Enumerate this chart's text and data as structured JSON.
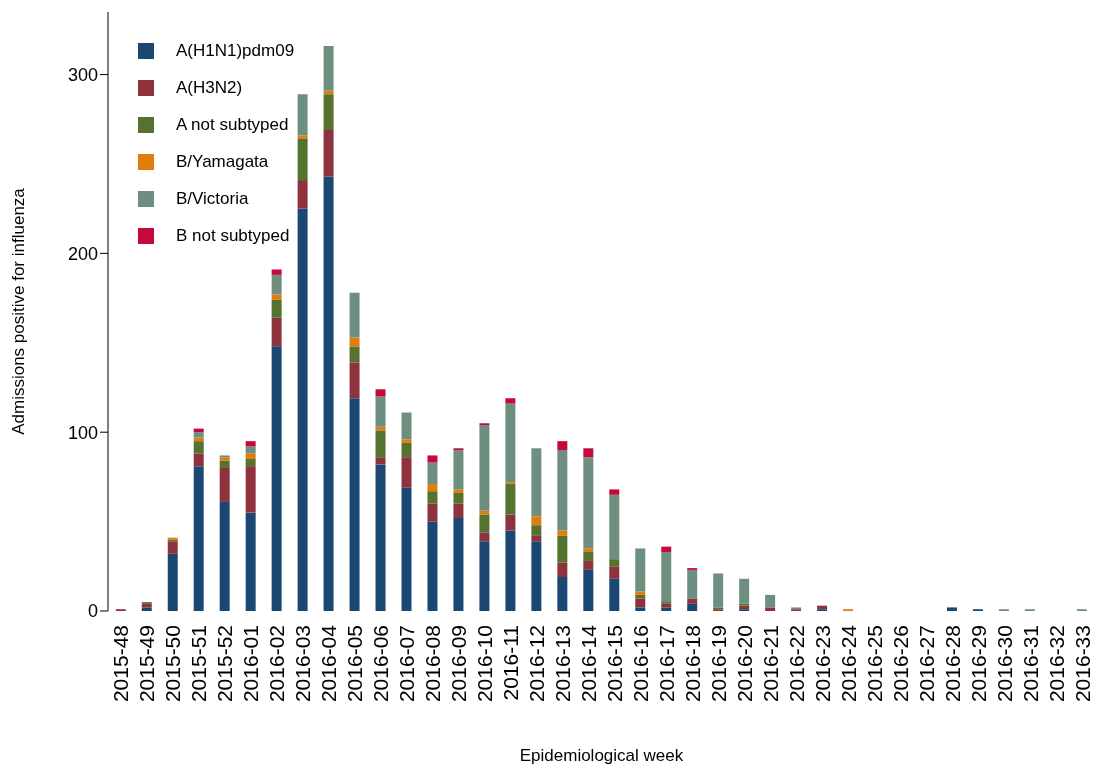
{
  "chart_data": {
    "type": "bar",
    "stacked": true,
    "xlabel": "Epidemiological week",
    "ylabel": "Admissions positive for influenza",
    "ylim": [
      0,
      335
    ],
    "yticks": [
      0,
      100,
      200,
      300
    ],
    "grid": false,
    "legend": "top left",
    "categories": [
      "2015-48",
      "2015-49",
      "2015-50",
      "2015-51",
      "2015-52",
      "2016-01",
      "2016-02",
      "2016-03",
      "2016-04",
      "2016-05",
      "2016-06",
      "2016-07",
      "2016-08",
      "2016-09",
      "2016-10",
      "2016-11",
      "2016-12",
      "2016-13",
      "2016-14",
      "2016-15",
      "2016-16",
      "2016-17",
      "2016-18",
      "2016-19",
      "2016-20",
      "2016-21",
      "2016-22",
      "2016-23",
      "2016-24",
      "2016-25",
      "2016-26",
      "2016-27",
      "2016-28",
      "2016-29",
      "2016-30",
      "2016-31",
      "2016-32",
      "2016-33"
    ],
    "series": [
      {
        "name": "A(H1N1)pdm09",
        "color": "#1b4872",
        "values": [
          0,
          2,
          32,
          81,
          61,
          55,
          148,
          225,
          243,
          119,
          82,
          69,
          50,
          52,
          39,
          45,
          39,
          19,
          23,
          18,
          2,
          2,
          4,
          0,
          1,
          0,
          0,
          1,
          0,
          0,
          0,
          0,
          2,
          1,
          0,
          0,
          0,
          0
        ]
      },
      {
        "name": "A(H3N2)",
        "color": "#8e333d",
        "values": [
          1,
          2,
          7,
          7,
          19,
          26,
          16,
          16,
          26,
          20,
          4,
          17,
          10,
          8,
          5,
          9,
          3,
          8,
          5,
          7,
          5,
          2,
          3,
          1,
          2,
          2,
          1,
          2,
          0,
          0,
          0,
          0,
          0,
          0,
          0,
          0,
          0,
          0
        ]
      },
      {
        "name": "A not subtyped",
        "color": "#55722f",
        "values": [
          0,
          1,
          1,
          7,
          4,
          4,
          10,
          23,
          20,
          9,
          15,
          8,
          7,
          6,
          10,
          17,
          6,
          15,
          5,
          4,
          2,
          1,
          0,
          1,
          1,
          0,
          0,
          0,
          0,
          0,
          0,
          0,
          0,
          0,
          0,
          0,
          0,
          0
        ]
      },
      {
        "name": "B/Yamagata",
        "color": "#e07d0c",
        "values": [
          0,
          0,
          1,
          2,
          2,
          3,
          3,
          2,
          2,
          5,
          2,
          2,
          4,
          2,
          2,
          1,
          5,
          3,
          2,
          0,
          2,
          0,
          0,
          0,
          0,
          0,
          0,
          0,
          1,
          0,
          0,
          0,
          0,
          0,
          0,
          0,
          0,
          0
        ]
      },
      {
        "name": "B/Victoria",
        "color": "#6e8e80",
        "values": [
          0,
          0,
          0,
          3,
          1,
          4,
          11,
          23,
          25,
          25,
          17,
          15,
          12,
          22,
          48,
          44,
          38,
          45,
          51,
          36,
          24,
          28,
          16,
          19,
          14,
          7,
          1,
          0,
          0,
          0,
          0,
          0,
          0,
          0,
          1,
          1,
          0,
          1
        ]
      },
      {
        "name": "B not subtyped",
        "color": "#c40a3a",
        "values": [
          0,
          0,
          0,
          2,
          0,
          3,
          3,
          0,
          0,
          0,
          4,
          0,
          4,
          1,
          1,
          3,
          0,
          5,
          5,
          3,
          0,
          3,
          1,
          0,
          0,
          0,
          0,
          0,
          0,
          0,
          0,
          0,
          0,
          0,
          0,
          0,
          0,
          0
        ]
      }
    ]
  }
}
